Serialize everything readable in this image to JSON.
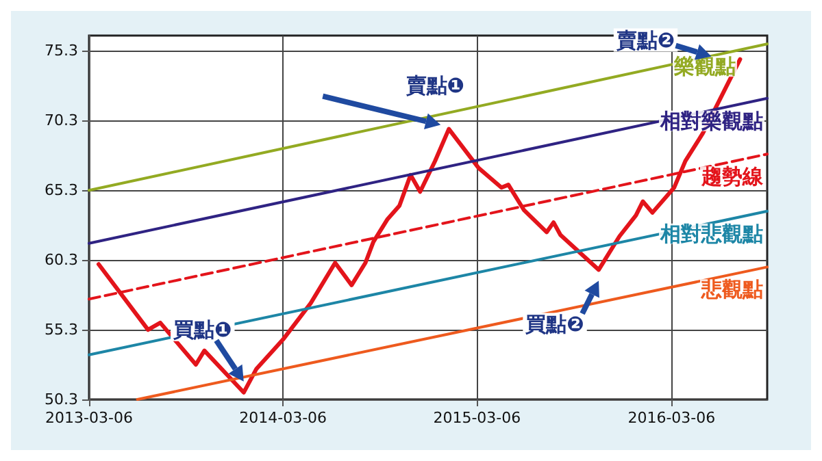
{
  "chart_data": {
    "type": "line",
    "xlim": [
      "2013-03-06",
      "2016-09-02"
    ],
    "ylim": [
      50.3,
      76.4
    ],
    "xticks": [
      "2013-03-06",
      "2014-03-06",
      "2015-03-06",
      "2016-03-06"
    ],
    "yticks": [
      50.3,
      55.3,
      60.3,
      65.3,
      70.3,
      75.3
    ],
    "grid": true,
    "marker": "none",
    "series": [
      {
        "name": "樂觀點",
        "color": "#93aa22",
        "x": [
          "2013-03-06",
          "2016-09-02"
        ],
        "values": [
          65.3,
          75.8
        ]
      },
      {
        "name": "相對樂觀點",
        "color": "#2f2383",
        "x": [
          "2013-03-06",
          "2016-09-02"
        ],
        "values": [
          61.5,
          71.9
        ]
      },
      {
        "name": "趨勢線",
        "color": "#e3141b",
        "line_style": "dashed",
        "x": [
          "2013-03-06",
          "2016-09-02"
        ],
        "values": [
          57.5,
          67.9
        ]
      },
      {
        "name": "相對悲觀點",
        "color": "#1d86a6",
        "x": [
          "2013-03-06",
          "2016-09-02"
        ],
        "values": [
          53.5,
          63.8
        ]
      },
      {
        "name": "悲觀點",
        "color": "#ee5a1e",
        "x": [
          "2013-06-05",
          "2016-09-02"
        ],
        "values": [
          50.3,
          59.8
        ]
      },
      {
        "color": "#e3141b",
        "x": [
          "2013-03-24",
          "2013-06-25",
          "2013-07-18",
          "2013-09-23",
          "2013-10-09",
          "2013-12-22",
          "2014-01-15",
          "2014-03-06",
          "2014-04-27",
          "2014-06-12",
          "2014-07-13",
          "2014-08-08",
          "2014-08-23",
          "2014-09-18",
          "2014-10-11",
          "2014-11-01",
          "2014-11-19",
          "2014-12-17",
          "2015-01-12",
          "2015-03-09",
          "2015-04-21",
          "2015-05-04",
          "2015-06-02",
          "2015-07-15",
          "2015-07-28",
          "2015-08-10",
          "2015-10-21",
          "2015-11-29",
          "2015-12-30",
          "2016-01-12",
          "2016-01-30",
          "2016-03-11",
          "2016-04-01",
          "2016-05-04",
          "2016-07-13"
        ],
        "values": [
          60.0,
          55.3,
          55.8,
          52.8,
          53.8,
          50.8,
          52.5,
          54.6,
          57.2,
          60.1,
          58.5,
          60.1,
          61.6,
          63.2,
          64.2,
          66.4,
          65.2,
          67.4,
          69.7,
          66.9,
          65.5,
          65.7,
          63.9,
          62.3,
          63.0,
          62.1,
          59.6,
          62.0,
          63.5,
          64.5,
          63.7,
          65.5,
          67.4,
          69.4,
          74.7
        ]
      }
    ],
    "annotations": [
      {
        "text": "賣點❶",
        "x": "2015-01-12",
        "y": 69.7
      },
      {
        "text": "賣點❷",
        "x": "2016-05-20",
        "y": 74.9
      },
      {
        "text": "買點❶",
        "x": "2013-12-22",
        "y": 50.8
      },
      {
        "text": "買點❷",
        "x": "2015-10-21",
        "y": 59.6
      }
    ]
  }
}
